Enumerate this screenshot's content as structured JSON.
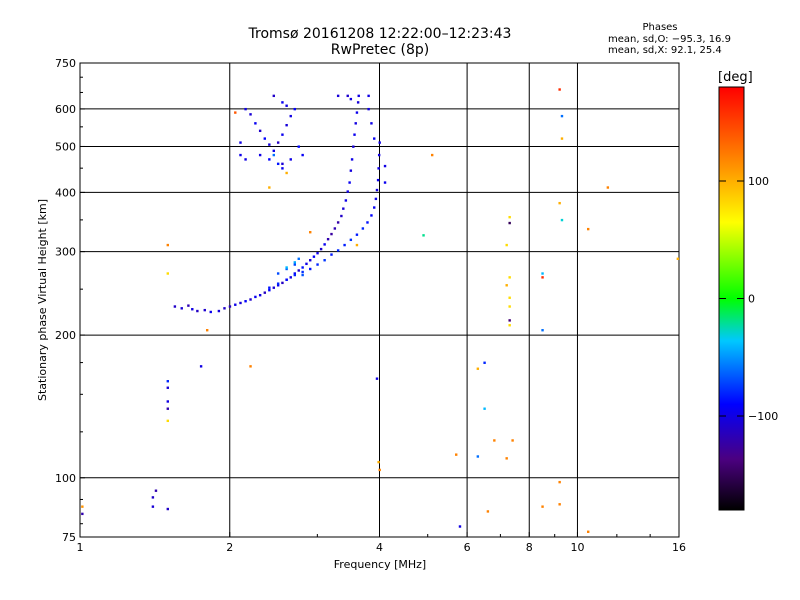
{
  "header": {
    "title": "Tromsø 20161208 12:22:00–12:23:43",
    "subtitle": "RwPretec (8p)",
    "phase_label": "Phases",
    "phase_o": "mean, sd,O: −95.3, 16.9",
    "phase_x": "mean, sd,X:  92.1, 25.4"
  },
  "colorbar": {
    "unit": "[deg]",
    "ticks": [
      {
        "value": 100,
        "label": "100"
      },
      {
        "value": 0,
        "label": "0"
      },
      {
        "value": -100,
        "label": "−100"
      }
    ],
    "range": [
      -180,
      180
    ]
  },
  "chart_data": {
    "type": "scatter",
    "title": "Tromsø 20161208 12:22:00–12:23:43",
    "subtitle": "RwPretec (8p)",
    "xlabel": "Frequency [MHz]",
    "ylabel": "Stationary phase Virtual Height [km]",
    "x_scale": "log",
    "y_scale": "log",
    "xlim": [
      1,
      16
    ],
    "ylim": [
      75,
      750
    ],
    "x_ticks": [
      {
        "value": 1,
        "label": "1"
      },
      {
        "value": 2,
        "label": "2"
      },
      {
        "value": 4,
        "label": "4"
      },
      {
        "value": 6,
        "label": "6"
      },
      {
        "value": 8,
        "label": "8"
      },
      {
        "value": 10,
        "label": "10"
      },
      {
        "value": 16,
        "label": "16"
      }
    ],
    "x_grid": [
      2,
      4,
      6,
      8,
      10
    ],
    "y_ticks": [
      {
        "value": 75,
        "label": "75"
      },
      {
        "value": 100,
        "label": "100"
      },
      {
        "value": 200,
        "label": "200"
      },
      {
        "value": 300,
        "label": "300"
      },
      {
        "value": 400,
        "label": "400"
      },
      {
        "value": 500,
        "label": "500"
      },
      {
        "value": 600,
        "label": "600"
      },
      {
        "value": 750,
        "label": "750"
      }
    ],
    "y_grid": [
      100,
      200,
      300,
      400,
      500,
      600
    ],
    "grid": true,
    "color_variable": "phase [deg]",
    "series": [
      {
        "points": [
          [
            1.01,
            87,
            112
          ],
          [
            1.01,
            84,
            -120
          ],
          [
            1.55,
            230,
            -110
          ],
          [
            1.6,
            228,
            -105
          ],
          [
            1.65,
            231,
            -118
          ],
          [
            1.68,
            227,
            -100
          ],
          [
            1.72,
            225,
            -112
          ],
          [
            1.78,
            226,
            -108
          ],
          [
            1.83,
            224,
            -96
          ],
          [
            1.9,
            225,
            -103
          ],
          [
            1.95,
            228,
            -110
          ],
          [
            2.0,
            230,
            -115
          ],
          [
            2.05,
            232,
            -98
          ],
          [
            2.1,
            234,
            -104
          ],
          [
            2.15,
            236,
            -92
          ],
          [
            2.2,
            238,
            -108
          ],
          [
            2.25,
            241,
            -95
          ],
          [
            2.3,
            243,
            -100
          ],
          [
            2.35,
            246,
            -113
          ],
          [
            2.4,
            249,
            -90
          ],
          [
            2.45,
            252,
            -106
          ],
          [
            2.5,
            255,
            -97
          ],
          [
            2.55,
            258,
            -112
          ],
          [
            2.6,
            262,
            -89
          ],
          [
            2.65,
            265,
            -101
          ],
          [
            2.7,
            270,
            -93
          ],
          [
            2.75,
            274,
            -110
          ],
          [
            2.8,
            278,
            -86
          ],
          [
            2.85,
            283,
            -99
          ],
          [
            2.9,
            288,
            -105
          ],
          [
            2.95,
            293,
            -92
          ],
          [
            3.0,
            298,
            -100
          ],
          [
            3.05,
            304,
            -108
          ],
          [
            3.1,
            311,
            -95
          ],
          [
            3.15,
            319,
            -120
          ],
          [
            3.2,
            327,
            -125
          ],
          [
            3.25,
            336,
            -118
          ],
          [
            3.3,
            346,
            -122
          ],
          [
            3.35,
            357,
            -110
          ],
          [
            3.38,
            370,
            -105
          ],
          [
            3.42,
            385,
            -98
          ],
          [
            3.45,
            402,
            -100
          ],
          [
            3.48,
            420,
            -95
          ],
          [
            3.5,
            445,
            -102
          ],
          [
            3.52,
            470,
            -99
          ],
          [
            3.54,
            500,
            -105
          ],
          [
            3.56,
            530,
            -96
          ],
          [
            3.58,
            560,
            -101
          ],
          [
            3.6,
            590,
            -97
          ],
          [
            3.62,
            620,
            -103
          ],
          [
            3.63,
            640,
            -100
          ],
          [
            2.4,
            252,
            -85
          ],
          [
            2.5,
            257,
            -80
          ],
          [
            2.6,
            262,
            -88
          ],
          [
            2.7,
            268,
            -82
          ],
          [
            2.8,
            272,
            -78
          ],
          [
            2.9,
            276,
            -85
          ],
          [
            3.0,
            282,
            -80
          ],
          [
            3.1,
            288,
            -76
          ],
          [
            3.2,
            296,
            -84
          ],
          [
            3.3,
            302,
            -79
          ],
          [
            3.4,
            310,
            -82
          ],
          [
            3.5,
            318,
            -77
          ],
          [
            3.6,
            326,
            -83
          ],
          [
            3.7,
            336,
            -80
          ],
          [
            3.78,
            346,
            -86
          ],
          [
            3.85,
            358,
            -90
          ],
          [
            3.9,
            372,
            -94
          ],
          [
            3.93,
            388,
            -98
          ],
          [
            3.95,
            405,
            -101
          ],
          [
            3.97,
            425,
            -95
          ],
          [
            3.98,
            450,
            -100
          ],
          [
            3.99,
            480,
            -102
          ],
          [
            4.0,
            510,
            -99
          ],
          [
            2.5,
            270,
            -70
          ],
          [
            2.6,
            276,
            -65
          ],
          [
            2.7,
            282,
            -72
          ],
          [
            2.75,
            290,
            -60
          ],
          [
            2.8,
            268,
            -68
          ],
          [
            2.6,
            278,
            -40
          ],
          [
            2.7,
            285,
            -45
          ],
          [
            2.15,
            600,
            -100
          ],
          [
            2.2,
            585,
            -105
          ],
          [
            2.25,
            560,
            -95
          ],
          [
            2.3,
            540,
            -110
          ],
          [
            2.35,
            520,
            -90
          ],
          [
            2.4,
            505,
            -102
          ],
          [
            2.45,
            490,
            -98
          ],
          [
            2.5,
            510,
            -112
          ],
          [
            2.55,
            530,
            -96
          ],
          [
            2.6,
            555,
            -104
          ],
          [
            2.65,
            580,
            -100
          ],
          [
            2.7,
            600,
            -92
          ],
          [
            2.4,
            470,
            -90
          ],
          [
            2.45,
            480,
            -60
          ],
          [
            2.5,
            460,
            -85
          ],
          [
            2.55,
            450,
            -95
          ],
          [
            2.3,
            480,
            -100
          ],
          [
            2.6,
            440,
            100
          ],
          [
            2.55,
            460,
            -105
          ],
          [
            2.65,
            470,
            -99
          ],
          [
            2.75,
            500,
            -88
          ],
          [
            2.8,
            480,
            -93
          ],
          [
            2.45,
            640,
            -110
          ],
          [
            2.55,
            620,
            -95
          ],
          [
            2.6,
            610,
            -100
          ],
          [
            2.15,
            470,
            -100
          ],
          [
            2.1,
            480,
            -98
          ],
          [
            2.05,
            590,
            140
          ],
          [
            2.4,
            410,
            100
          ],
          [
            2.1,
            510,
            -100
          ],
          [
            3.45,
            640,
            -108
          ],
          [
            3.5,
            630,
            -100
          ],
          [
            3.3,
            640,
            -104
          ],
          [
            3.8,
            640,
            -100
          ],
          [
            3.8,
            600,
            -100
          ],
          [
            3.85,
            560,
            -98
          ],
          [
            3.9,
            520,
            -95
          ],
          [
            2.9,
            330,
            120
          ],
          [
            3.6,
            310,
            100
          ],
          [
            4.1,
            455,
            -100
          ],
          [
            4.1,
            420,
            -96
          ],
          [
            1.5,
            310,
            120
          ],
          [
            1.5,
            270,
            80
          ],
          [
            1.8,
            205,
            120
          ],
          [
            2.2,
            172,
            120
          ],
          [
            1.75,
            172,
            -100
          ],
          [
            1.5,
            160,
            -80
          ],
          [
            1.5,
            155,
            -105
          ],
          [
            1.5,
            145,
            -100
          ],
          [
            1.5,
            140,
            -120
          ],
          [
            1.5,
            132,
            80
          ],
          [
            1.42,
            94,
            -120
          ],
          [
            1.4,
            91,
            -110
          ],
          [
            1.4,
            87,
            -105
          ],
          [
            1.5,
            86,
            -110
          ],
          [
            3.95,
            162,
            -100
          ],
          [
            3.98,
            108,
            100
          ],
          [
            4.0,
            104,
            120
          ],
          [
            4.9,
            325,
            -20
          ],
          [
            5.1,
            480,
            120
          ],
          [
            5.7,
            112,
            120
          ],
          [
            5.8,
            79,
            -100
          ],
          [
            6.3,
            170,
            100
          ],
          [
            6.5,
            175,
            -80
          ],
          [
            6.5,
            140,
            -40
          ],
          [
            6.3,
            111,
            -60
          ],
          [
            6.8,
            120,
            120
          ],
          [
            6.6,
            85,
            120
          ],
          [
            7.3,
            355,
            80
          ],
          [
            7.3,
            345,
            -150
          ],
          [
            7.2,
            310,
            80
          ],
          [
            7.3,
            265,
            80
          ],
          [
            7.2,
            255,
            100
          ],
          [
            7.3,
            240,
            80
          ],
          [
            7.3,
            230,
            80
          ],
          [
            7.3,
            215,
            -140
          ],
          [
            7.3,
            210,
            80
          ],
          [
            7.2,
            110,
            120
          ],
          [
            7.4,
            120,
            120
          ],
          [
            8.5,
            270,
            -40
          ],
          [
            8.5,
            265,
            160
          ],
          [
            8.5,
            205,
            -60
          ],
          [
            8.5,
            87,
            120
          ],
          [
            9.2,
            660,
            160
          ],
          [
            9.3,
            580,
            -60
          ],
          [
            9.3,
            520,
            100
          ],
          [
            9.2,
            380,
            100
          ],
          [
            9.3,
            350,
            -30
          ],
          [
            9.2,
            98,
            120
          ],
          [
            9.2,
            88,
            120
          ],
          [
            10.5,
            335,
            120
          ],
          [
            11.5,
            410,
            120
          ],
          [
            10.5,
            77,
            120
          ],
          [
            15.9,
            290,
            100
          ]
        ]
      }
    ]
  }
}
